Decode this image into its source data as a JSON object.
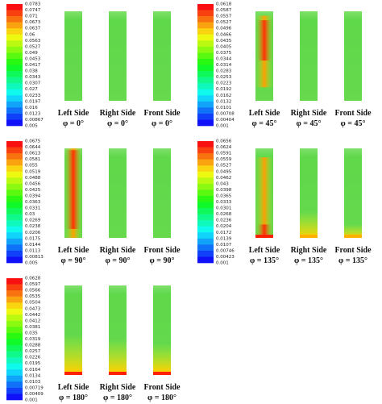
{
  "panels": [
    {
      "colorbar": [
        "0.0783",
        "0.0747",
        "0.071",
        "0.0673",
        "0.0637",
        "0.06",
        "0.0563",
        "0.0527",
        "0.049",
        "0.0453",
        "0.0417",
        "0.038",
        "0.0343",
        "0.0307",
        "0.027",
        "0.0233",
        "0.0197",
        "0.016",
        "0.0123",
        "0.00867",
        "0.005"
      ],
      "views": [
        {
          "side": "Left Side",
          "angle": "φ = 0°"
        },
        {
          "side": "Right Side",
          "angle": "φ = 0°"
        },
        {
          "side": "Front Side",
          "angle": "φ = 0°"
        }
      ]
    },
    {
      "colorbar": [
        "0.0618",
        "0.0587",
        "0.0557",
        "0.0527",
        "0.0496",
        "0.0466",
        "0.0435",
        "0.0405",
        "0.0375",
        "0.0344",
        "0.0314",
        "0.0283",
        "0.0253",
        "0.0223",
        "0.0192",
        "0.0162",
        "0.0132",
        "0.0101",
        "0.00708",
        "0.00404",
        "0.001"
      ],
      "views": [
        {
          "side": "Left Side",
          "angle": "φ = 45°"
        },
        {
          "side": "Right Side",
          "angle": "φ = 45°"
        },
        {
          "side": "Front Side",
          "angle": "φ = 45°"
        }
      ]
    },
    {
      "colorbar": [
        "0.0675",
        "0.0644",
        "0.0613",
        "0.0581",
        "0.055",
        "0.0519",
        "0.0488",
        "0.0456",
        "0.0425",
        "0.0394",
        "0.0363",
        "0.0331",
        "0.03",
        "0.0269",
        "0.0238",
        "0.0206",
        "0.0175",
        "0.0144",
        "0.0113",
        "0.00813",
        "0.005"
      ],
      "views": [
        {
          "side": "Left Side",
          "angle": "φ = 90°"
        },
        {
          "side": "Right Side",
          "angle": "φ = 90°"
        },
        {
          "side": "Front Side",
          "angle": "φ = 90°"
        }
      ]
    },
    {
      "colorbar": [
        "0.0656",
        "0.0624",
        "0.0591",
        "0.0559",
        "0.0527",
        "0.0495",
        "0.0462",
        "0.043",
        "0.0398",
        "0.0365",
        "0.0333",
        "0.0301",
        "0.0268",
        "0.0236",
        "0.0204",
        "0.0172",
        "0.0139",
        "0.0107",
        "0.00746",
        "0.00423",
        "0.001"
      ],
      "views": [
        {
          "side": "Left Side",
          "angle": "φ = 135°"
        },
        {
          "side": "Right Side",
          "angle": "φ = 135°"
        },
        {
          "side": "Front Side",
          "angle": "φ = 135°"
        }
      ]
    },
    {
      "colorbar": [
        "0.0628",
        "0.0597",
        "0.0566",
        "0.0535",
        "0.0504",
        "0.0473",
        "0.0442",
        "0.0412",
        "0.0381",
        "0.035",
        "0.0319",
        "0.0288",
        "0.0257",
        "0.0226",
        "0.0195",
        "0.0164",
        "0.0134",
        "0.0103",
        "0.00719",
        "0.00409",
        "0.001"
      ],
      "views": [
        {
          "side": "Left Side",
          "angle": "φ = 180°"
        },
        {
          "side": "Right Side",
          "angle": "φ = 180°"
        },
        {
          "side": "Front Side",
          "angle": "φ = 180°"
        }
      ]
    }
  ]
}
